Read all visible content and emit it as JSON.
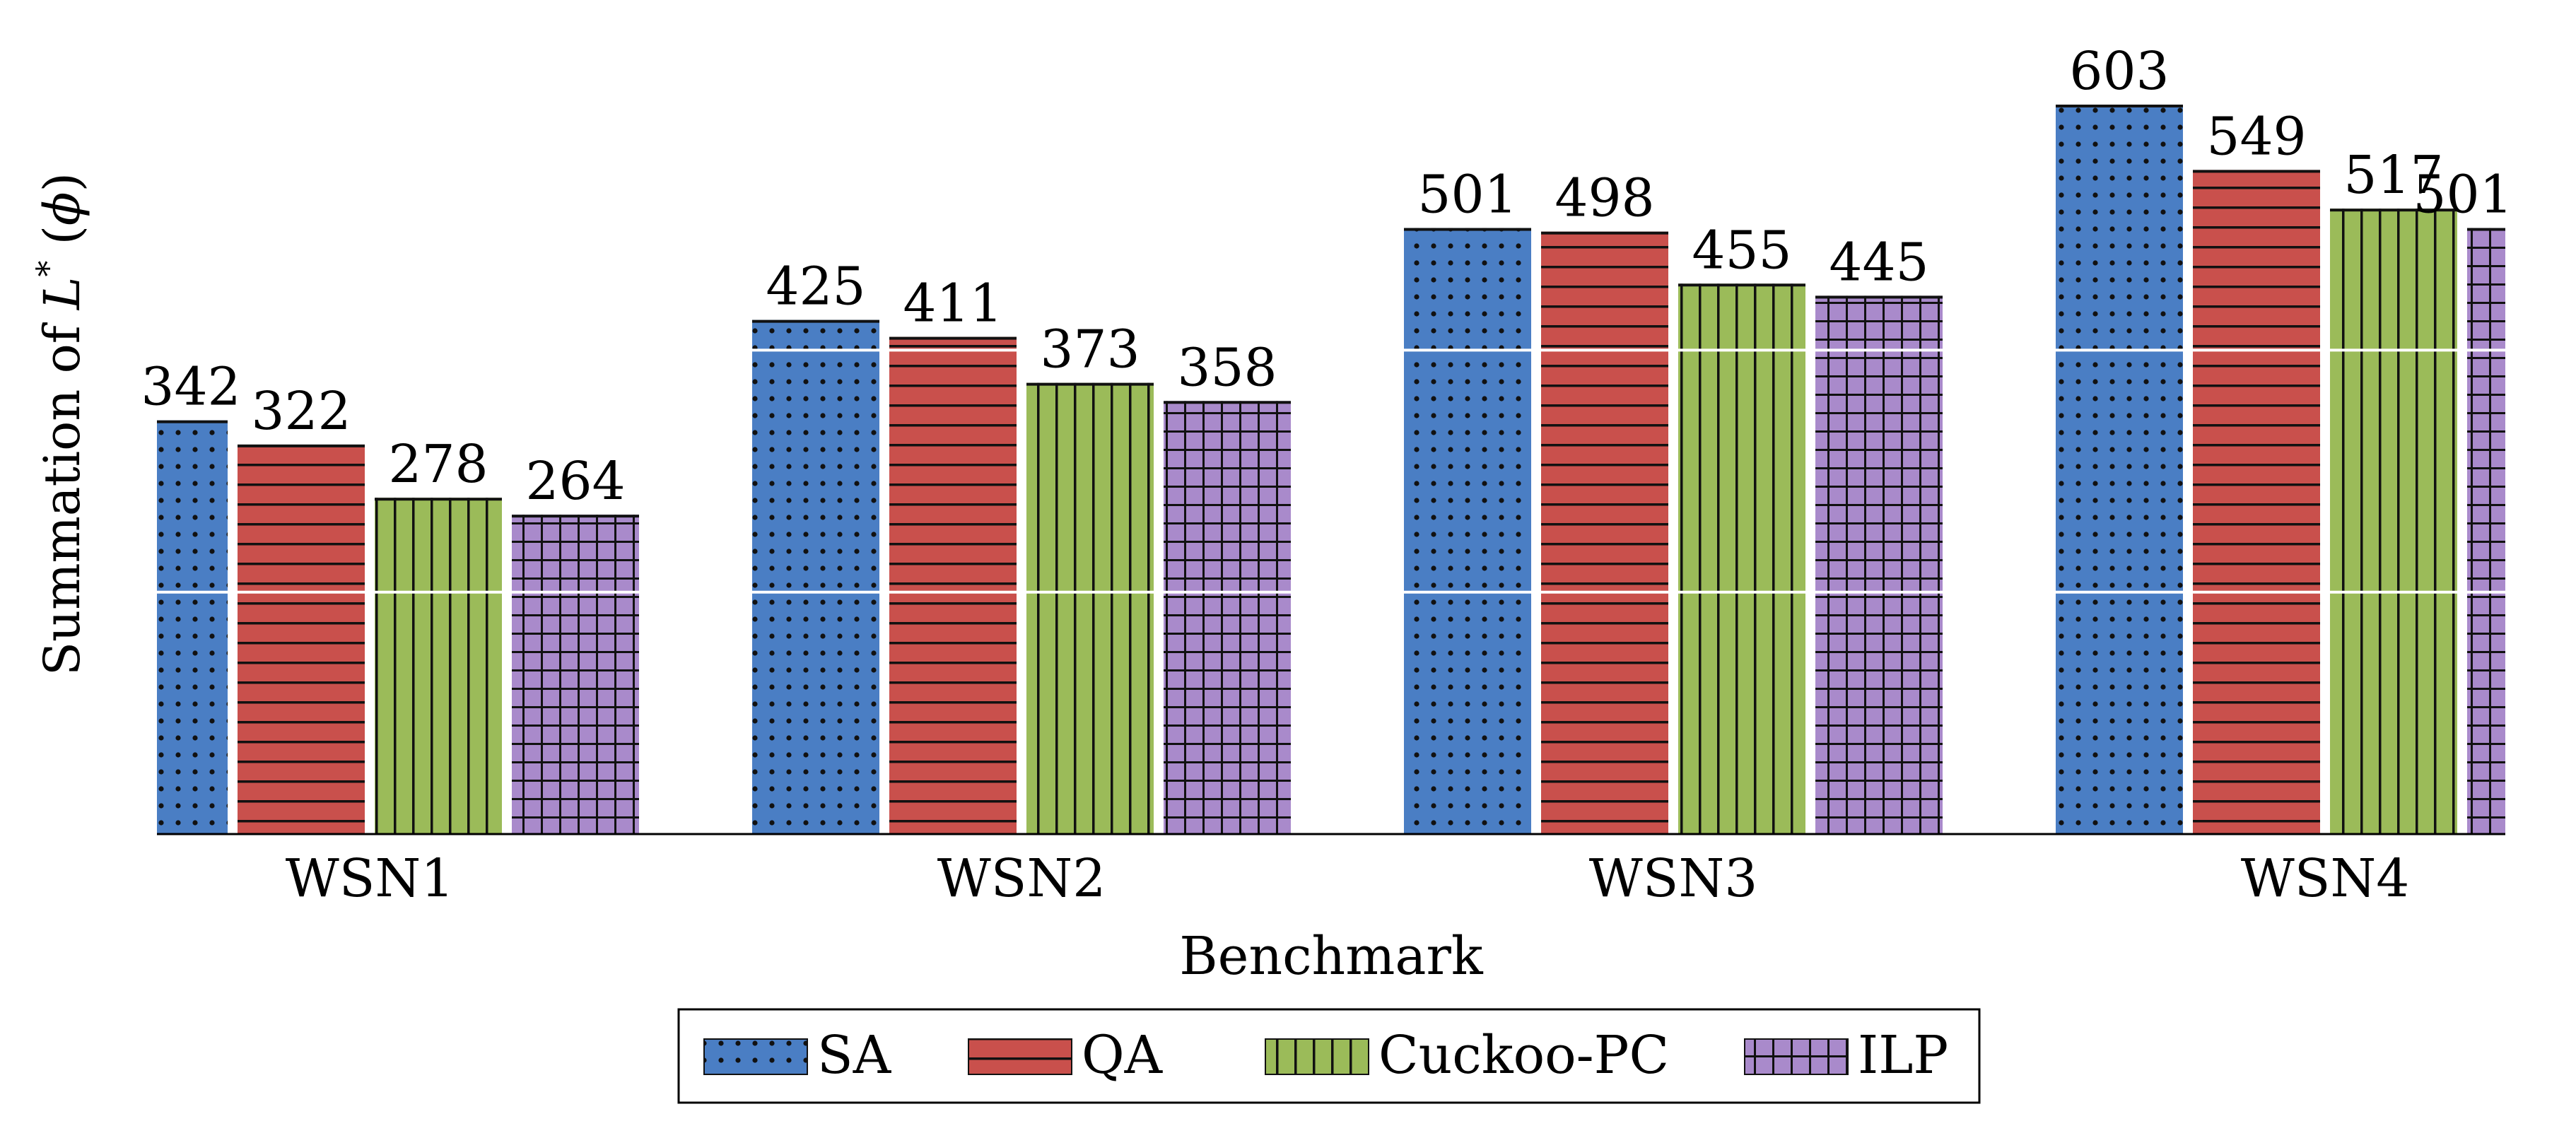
{
  "chart_data": {
    "type": "bar",
    "title": "",
    "xlabel": "Benchmark",
    "ylabel_parts": {
      "prefix": "Summation of ",
      "symbol": "L",
      "superscript": "*",
      "suffix_open": " (",
      "phi": "ϕ",
      "suffix_close": ")"
    },
    "categories": [
      "WSN1",
      "WSN2",
      "WSN3",
      "WSN4"
    ],
    "series": [
      {
        "name": "SA",
        "values": [
          342,
          425,
          501,
          603
        ],
        "color": "#4a7ec4",
        "pattern": "dots"
      },
      {
        "name": "QA",
        "values": [
          322,
          411,
          498,
          549
        ],
        "color": "#c9504c",
        "pattern": "hlines"
      },
      {
        "name": "Cuckoo-PC",
        "values": [
          278,
          373,
          455,
          517
        ],
        "color": "#9bbb59",
        "pattern": "vlines"
      },
      {
        "name": "ILP",
        "values": [
          264,
          358,
          445,
          501
        ],
        "color": "#a98acb",
        "pattern": "grid"
      }
    ],
    "ylim": [
      0,
      603
    ],
    "grid_values": [
      200,
      400
    ],
    "y_ticks_shown": false,
    "legend_position": "bottom-center"
  }
}
